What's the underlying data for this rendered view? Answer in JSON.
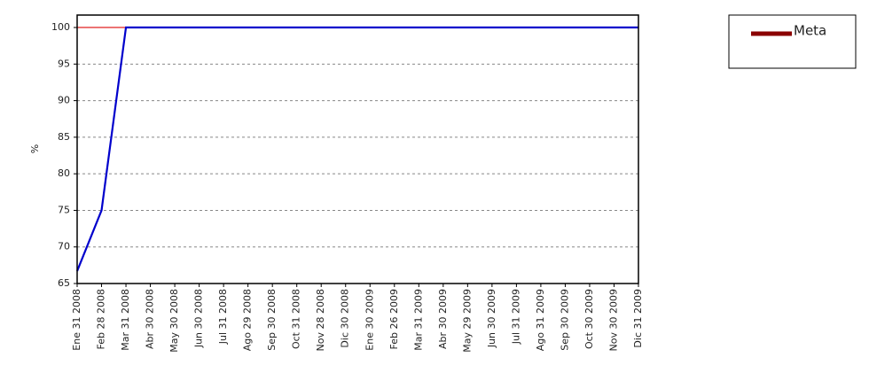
{
  "chart_data": {
    "type": "line",
    "y_label": "%",
    "categories": [
      "Ene 31 2008",
      "Feb 28 2008",
      "Mar 31 2008",
      "Abr 30 2008",
      "May 30 2008",
      "Jun 30 2008",
      "Jul 31 2008",
      "Ago 29 2008",
      "Sep 30 2008",
      "Oct 31 2008",
      "Nov 28 2008",
      "Dic 30 2008",
      "Ene 30 2009",
      "Feb 26 2009",
      "Mar 31 2009",
      "Abr 30 2009",
      "May 29 2009",
      "Jun 30 2009",
      "Jul 31 2009",
      "Ago 31 2009",
      "Sep 30 2009",
      "Oct 30 2009",
      "Nov 30 2009",
      "Dic 31 2009"
    ],
    "series": [
      {
        "name": "Meta",
        "color": "#e02020",
        "legend_color": "#8b0000",
        "values": [
          100,
          100,
          100,
          100,
          100,
          100,
          100,
          100,
          100,
          100,
          100,
          100,
          100,
          100,
          100,
          100,
          100,
          100,
          100,
          100,
          100,
          100,
          100,
          100
        ]
      },
      {
        "color": "#0000cc",
        "values": [
          66.7,
          75,
          100,
          100,
          100,
          100,
          100,
          100,
          100,
          100,
          100,
          100,
          100,
          100,
          100,
          100,
          100,
          100,
          100,
          100,
          100,
          100,
          100,
          100
        ]
      }
    ],
    "ylim": [
      65,
      101.7
    ],
    "yticks": [
      65,
      70,
      75,
      80,
      85,
      90,
      95,
      100
    ],
    "grid": true
  }
}
